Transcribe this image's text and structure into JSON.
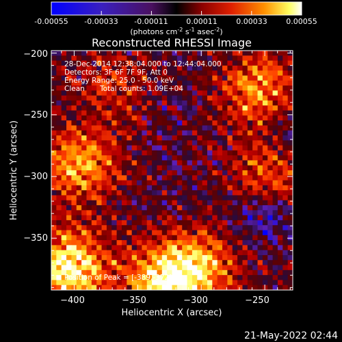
{
  "colorbar": {
    "tick_labels": [
      "-0.00055",
      "-0.00033",
      "-0.00011",
      "0.00011",
      "0.00033",
      "0.00055"
    ],
    "tick_values": [
      -0.00055,
      -0.00033,
      -0.00011,
      0.00011,
      0.00033,
      0.00055
    ],
    "range": [
      -0.00055,
      0.00055
    ],
    "unit_prefix": "(photons cm",
    "unit_sup1": "-2",
    "unit_mid": " s",
    "unit_sup2": "-1",
    "unit_mid2": " asec",
    "unit_sup3": "-2",
    "unit_suffix": ")"
  },
  "chart_data": {
    "type": "heatmap",
    "title": "Reconstructed RHESSI Image",
    "xlabel": "Heliocentric X (arcsec)",
    "ylabel": "Heliocentric Y (arcsec)",
    "xlim": [
      -418,
      -228
    ],
    "ylim": [
      -392,
      -198
    ],
    "x_ticks": [
      -400,
      -350,
      -300,
      -250
    ],
    "x_tick_labels": [
      "−400",
      "−350",
      "−300",
      "−250"
    ],
    "y_ticks": [
      -200,
      -250,
      -300,
      -350
    ],
    "y_tick_labels": [
      "−200",
      "−250",
      "−300",
      "−350"
    ],
    "colormap": [
      "#0000ff",
      "#5a1fb4",
      "#2a0a3a",
      "#600000",
      "#c00000",
      "#ff4000",
      "#ffa000",
      "#ffff60",
      "#ffffff"
    ],
    "bright_regions": [
      {
        "x": -405,
        "y": -375,
        "level": 0.95
      },
      {
        "x": -395,
        "y": -290,
        "level": 0.75
      },
      {
        "x": -330,
        "y": -385,
        "level": 0.85
      },
      {
        "x": -300,
        "y": -375,
        "level": 0.7
      },
      {
        "x": -255,
        "y": -230,
        "level": 0.7
      },
      {
        "x": -245,
        "y": -295,
        "level": 0.65
      },
      {
        "x": -370,
        "y": -225,
        "level": 0.5
      }
    ],
    "dim_regions": [
      {
        "x": -250,
        "y": -330,
        "level": 0.1
      },
      {
        "x": -235,
        "y": -270,
        "level": 0.12
      },
      {
        "x": -330,
        "y": -300,
        "level": 0.3
      },
      {
        "x": -310,
        "y": -250,
        "level": 0.3
      }
    ],
    "peak": {
      "x": -389,
      "y": -372
    }
  },
  "annotations": {
    "time_range": "28-Dec-2014 12:38:04.000 to 12:44:04.000",
    "detectors": "Detectors: 3F 6F 7F 9F, Att 0",
    "energy_range": "Energy Range: 25.0 - 50.0 keV",
    "clean_label": "Clean",
    "total_counts": "Total counts: 1.09E+04",
    "peak_position": "Position of Peak = [-389,-372]"
  },
  "footer_date": "21-May-2022 02:44"
}
